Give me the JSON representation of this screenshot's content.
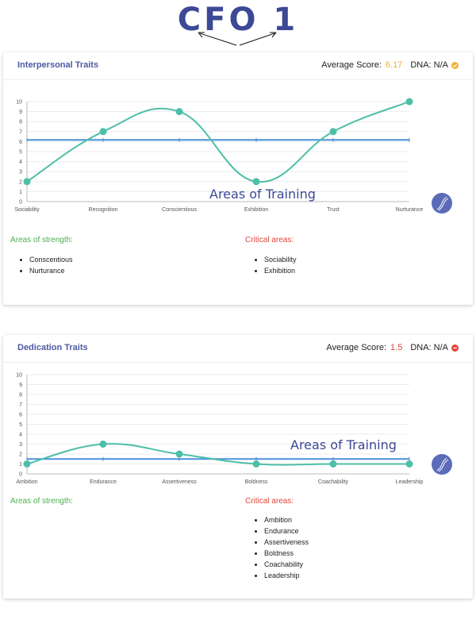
{
  "page_title": "CFO 1",
  "cards": [
    {
      "title": "Interpersonal Traits",
      "avg_label": "Average Score:",
      "avg_value": "6.17",
      "dna_label": "DNA: N/A",
      "status_icon": "check-circle-icon",
      "status_color": "#f0b232",
      "overlay_text": "Areas of Training",
      "strength_label": "Areas of strength:",
      "critical_label": "Critical areas:",
      "strength_items": [
        "Conscentious",
        "Nurturance"
      ],
      "critical_items": [
        "Sociability",
        "Exhibition"
      ]
    },
    {
      "title": "Dedication Traits",
      "avg_label": "Average Score:",
      "avg_value": "1.5",
      "dna_label": "DNA: N/A",
      "status_icon": "minus-circle-icon",
      "status_color": "#e0463d",
      "overlay_text": "Areas of Training",
      "strength_label": "Areas of strength:",
      "critical_label": "Critical areas:",
      "strength_items": [],
      "critical_items": [
        "Ambition",
        "Endurance",
        "Assertiveness",
        "Boldness",
        "Coachability",
        "Leadership"
      ]
    }
  ],
  "chart_data": [
    {
      "type": "line",
      "categories": [
        "Sociability",
        "Recognition",
        "Conscientious",
        "Exhibition",
        "Trust",
        "Nurturance"
      ],
      "series": [
        {
          "values": [
            2,
            7,
            9,
            2,
            7,
            10
          ],
          "color": "#4dbfa8"
        },
        {
          "values": [
            6.17,
            6.17,
            6.17,
            6.17,
            6.17,
            6.17
          ],
          "color": "#4a90d9"
        }
      ],
      "ylim": [
        0,
        10
      ],
      "yticks": [
        "0",
        "1",
        "2",
        "3",
        "4",
        "5",
        "6",
        "7",
        "8",
        "9",
        "10"
      ],
      "grid": true
    },
    {
      "type": "line",
      "categories": [
        "Ambition",
        "Endurance",
        "Assertiveness",
        "Boldness",
        "Coachability",
        "Leadership"
      ],
      "series": [
        {
          "values": [
            1,
            3,
            2,
            1,
            1,
            1
          ],
          "color": "#4dbfa8"
        },
        {
          "values": [
            1.5,
            1.5,
            1.5,
            1.5,
            1.5,
            1.5
          ],
          "color": "#4a90d9"
        }
      ],
      "ylim": [
        0,
        10
      ],
      "yticks": [
        "0",
        "1",
        "2",
        "3",
        "4",
        "5",
        "6",
        "7",
        "8",
        "9",
        "10"
      ],
      "grid": true
    }
  ],
  "colors": {
    "title": "#3d4896",
    "dna_badge": "#5b6bb8"
  }
}
